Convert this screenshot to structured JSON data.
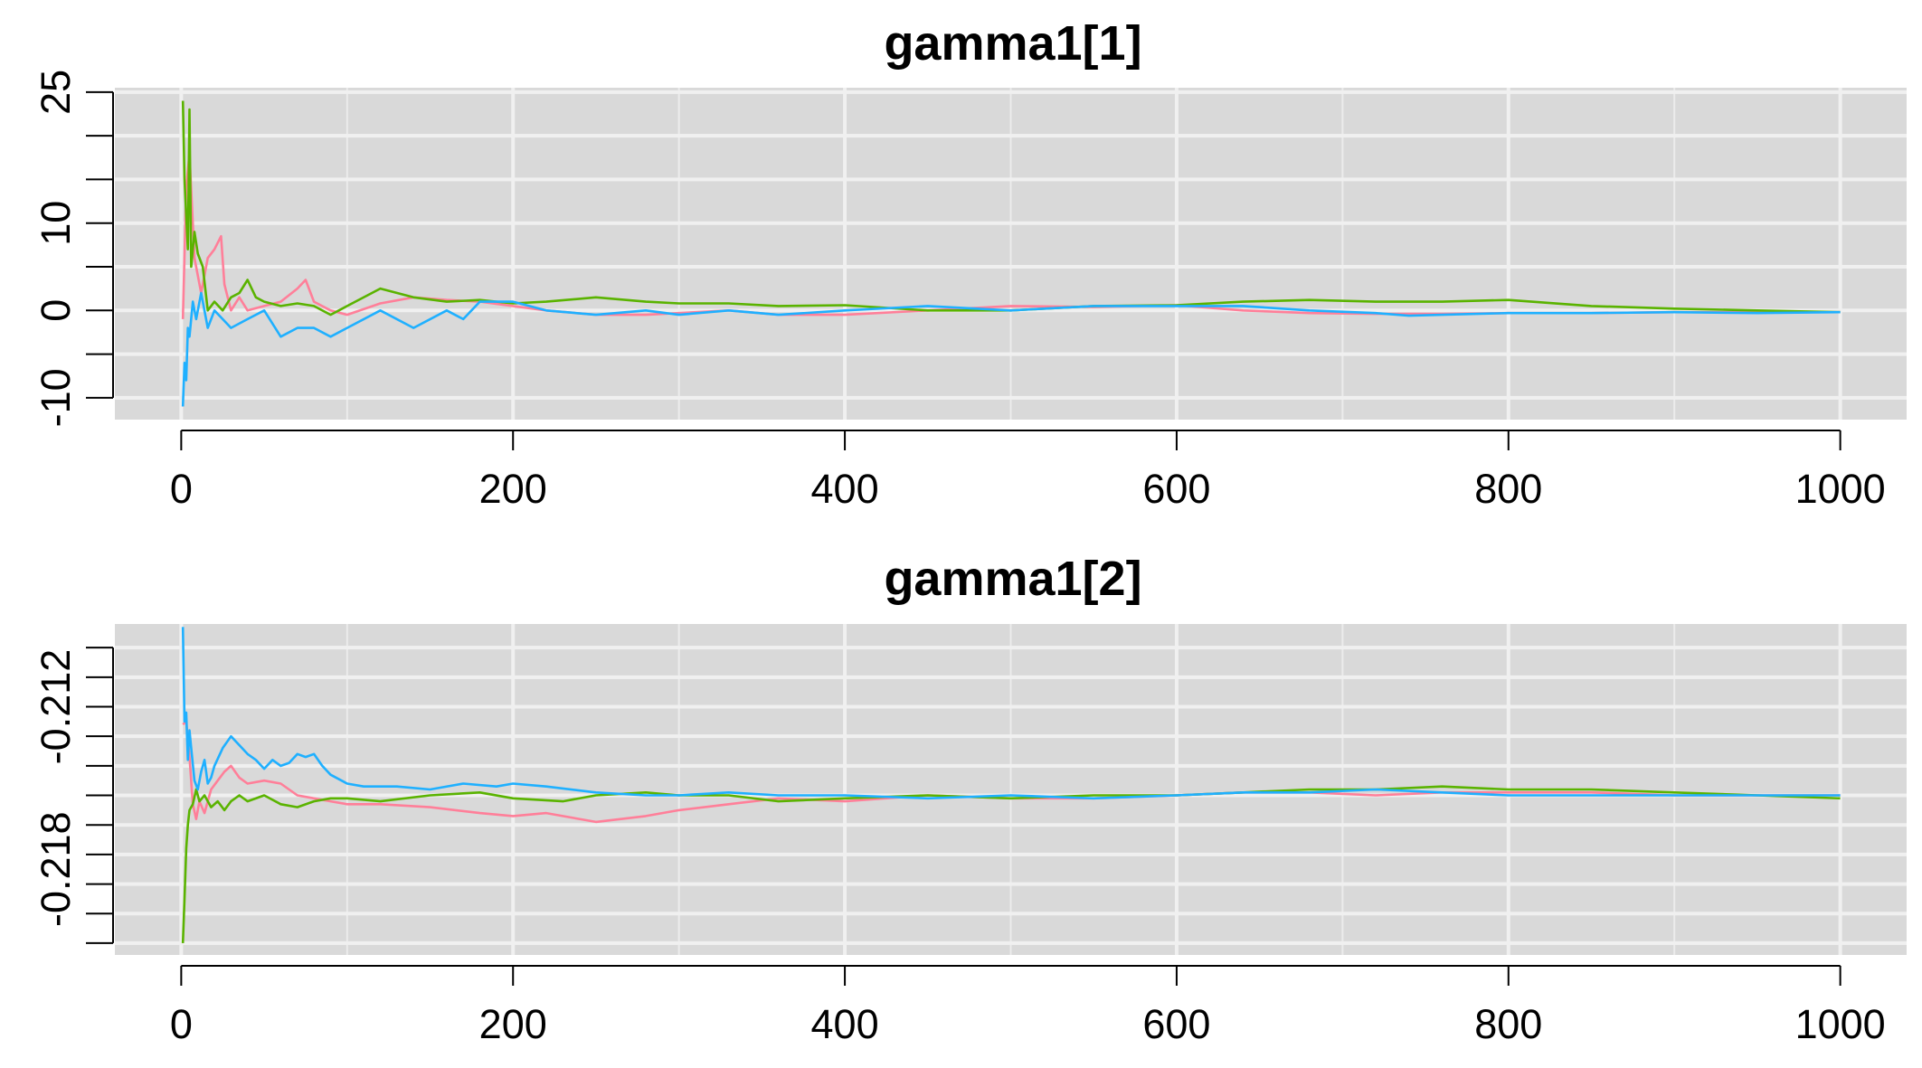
{
  "chart_data": [
    {
      "type": "line",
      "title": "gamma1[1]",
      "xlim": [
        -40,
        1040
      ],
      "ylim": [
        -12.5,
        25.5
      ],
      "x_ticks": [
        0,
        200,
        400,
        600,
        800,
        1000
      ],
      "x_tick_labels": [
        "0",
        "200",
        "400",
        "600",
        "800",
        "1000"
      ],
      "y_ticks": [
        -10,
        -5,
        0,
        5,
        10,
        15,
        20,
        25
      ],
      "y_tick_labels": [
        "-10",
        "",
        "0",
        "",
        "10",
        "",
        "",
        "25"
      ],
      "grid": true,
      "series_colors": [
        "#ff7f99",
        "#5ab300",
        "#1fb0ff"
      ],
      "series": [
        {
          "x": [
            1,
            3,
            5,
            8,
            12,
            16,
            20,
            24,
            26,
            30,
            35,
            40,
            50,
            60,
            70,
            75,
            80,
            90,
            100,
            120,
            140,
            160,
            180,
            200,
            220,
            250,
            280,
            300,
            330,
            360,
            400,
            450,
            500,
            550,
            600,
            640,
            680,
            720,
            760,
            800,
            850,
            900,
            950,
            1000
          ],
          "values": [
            -1,
            14,
            18,
            6,
            2,
            6,
            7,
            8.5,
            3,
            0,
            1.5,
            0,
            0.5,
            1,
            2.5,
            3.5,
            1,
            0,
            -0.5,
            0.8,
            1.5,
            1.2,
            1,
            0.5,
            0,
            -0.5,
            -0.5,
            -0.3,
            0,
            -0.5,
            -0.5,
            0,
            0.5,
            0.4,
            0.6,
            0,
            -0.3,
            -0.4,
            -0.4,
            -0.3,
            -0.3,
            -0.2,
            -0.2,
            -0.2
          ]
        },
        {
          "x": [
            1,
            2,
            4,
            5,
            6,
            8,
            10,
            13,
            16,
            20,
            25,
            30,
            35,
            40,
            45,
            50,
            60,
            70,
            80,
            90,
            100,
            120,
            140,
            160,
            180,
            200,
            220,
            250,
            280,
            300,
            330,
            360,
            400,
            450,
            500,
            550,
            600,
            640,
            680,
            720,
            760,
            800,
            850,
            900,
            950,
            1000
          ],
          "values": [
            24,
            15,
            7,
            23,
            5,
            9,
            6.5,
            5,
            0,
            1,
            0,
            1.5,
            2,
            3.5,
            1.5,
            1,
            0.5,
            0.8,
            0.5,
            -0.5,
            0.5,
            2.5,
            1.5,
            1,
            1.2,
            0.8,
            1,
            1.5,
            1,
            0.8,
            0.8,
            0.5,
            0.6,
            0,
            0,
            0.5,
            0.6,
            1,
            1.2,
            1,
            1,
            1.2,
            0.5,
            0.2,
            0,
            -0.2
          ]
        },
        {
          "x": [
            1,
            2,
            3,
            4,
            5,
            7,
            9,
            12,
            16,
            20,
            25,
            30,
            40,
            50,
            60,
            70,
            80,
            90,
            100,
            120,
            140,
            160,
            170,
            180,
            200,
            220,
            250,
            280,
            300,
            330,
            360,
            400,
            450,
            500,
            550,
            600,
            640,
            680,
            720,
            740,
            760,
            800,
            850,
            900,
            950,
            1000
          ],
          "values": [
            -11,
            -6,
            -8,
            -2,
            -3,
            1,
            -1,
            2,
            -2,
            0,
            -1,
            -2,
            -1,
            0,
            -3,
            -2,
            -2,
            -3,
            -2,
            0,
            -2,
            0,
            -1,
            1,
            1,
            0,
            -0.5,
            0,
            -0.5,
            0,
            -0.5,
            0,
            0.5,
            0,
            0.5,
            0.5,
            0.5,
            0,
            -0.3,
            -0.6,
            -0.5,
            -0.3,
            -0.3,
            -0.2,
            -0.3,
            -0.2
          ]
        }
      ]
    },
    {
      "type": "line",
      "title": "gamma1[2]",
      "xlim": [
        -40,
        1040
      ],
      "ylim": [
        -0.2194,
        -0.2082
      ],
      "x_ticks": [
        0,
        200,
        400,
        600,
        800,
        1000
      ],
      "x_tick_labels": [
        "0",
        "200",
        "400",
        "600",
        "800",
        "1000"
      ],
      "y_ticks": [
        -0.209,
        -0.21,
        -0.211,
        -0.212,
        -0.213,
        -0.214,
        -0.215,
        -0.216,
        -0.217,
        -0.218,
        -0.219
      ],
      "y_tick_labels": [
        "",
        "",
        "",
        "",
        "",
        "",
        "",
        "",
        "",
        "",
        ""
      ],
      "y_tick_text": [
        {
          "label": "-0.212",
          "from": -0.21,
          "to": -0.212
        },
        {
          "label": "-0.218",
          "from": -0.215,
          "to": -0.218
        }
      ],
      "grid": true,
      "series_colors": [
        "#ff7f99",
        "#5ab300",
        "#1fb0ff"
      ],
      "series": [
        {
          "x": [
            1,
            3,
            5,
            7,
            9,
            11,
            14,
            18,
            22,
            26,
            30,
            35,
            40,
            50,
            60,
            70,
            80,
            90,
            100,
            120,
            150,
            180,
            200,
            220,
            250,
            280,
            300,
            330,
            360,
            400,
            450,
            500,
            550,
            600,
            640,
            680,
            720,
            760,
            800,
            850,
            900,
            950,
            1000
          ],
          "values": [
            -0.2116,
            -0.2115,
            -0.2127,
            -0.2143,
            -0.2148,
            -0.2142,
            -0.2146,
            -0.2138,
            -0.2135,
            -0.2132,
            -0.213,
            -0.2134,
            -0.2136,
            -0.2135,
            -0.2136,
            -0.214,
            -0.2141,
            -0.2142,
            -0.2143,
            -0.2143,
            -0.2144,
            -0.2146,
            -0.2147,
            -0.2146,
            -0.2149,
            -0.2147,
            -0.2145,
            -0.2143,
            -0.2141,
            -0.2142,
            -0.214,
            -0.2141,
            -0.2141,
            -0.214,
            -0.2139,
            -0.2139,
            -0.214,
            -0.2139,
            -0.2139,
            -0.2139,
            -0.214,
            -0.214,
            -0.214
          ]
        },
        {
          "x": [
            1,
            2,
            3,
            4,
            5,
            7,
            9,
            11,
            14,
            18,
            22,
            26,
            30,
            35,
            40,
            50,
            60,
            70,
            80,
            90,
            100,
            120,
            150,
            180,
            200,
            230,
            250,
            280,
            300,
            330,
            360,
            400,
            450,
            500,
            550,
            600,
            640,
            680,
            720,
            760,
            800,
            850,
            900,
            950,
            1000
          ],
          "values": [
            -0.219,
            -0.2175,
            -0.2158,
            -0.215,
            -0.2145,
            -0.2143,
            -0.2138,
            -0.2142,
            -0.214,
            -0.2144,
            -0.2142,
            -0.2145,
            -0.2142,
            -0.214,
            -0.2142,
            -0.214,
            -0.2143,
            -0.2144,
            -0.2142,
            -0.2141,
            -0.2141,
            -0.2142,
            -0.214,
            -0.2139,
            -0.2141,
            -0.2142,
            -0.214,
            -0.2139,
            -0.214,
            -0.214,
            -0.2142,
            -0.2141,
            -0.214,
            -0.2141,
            -0.214,
            -0.214,
            -0.2139,
            -0.2138,
            -0.2138,
            -0.2137,
            -0.2138,
            -0.2138,
            -0.2139,
            -0.214,
            -0.2141
          ]
        },
        {
          "x": [
            1,
            2,
            3,
            4,
            5,
            6,
            8,
            10,
            12,
            14,
            16,
            18,
            20,
            25,
            30,
            35,
            40,
            45,
            50,
            55,
            60,
            65,
            70,
            75,
            80,
            85,
            90,
            100,
            110,
            130,
            150,
            170,
            190,
            200,
            220,
            250,
            280,
            300,
            330,
            360,
            400,
            450,
            500,
            550,
            600,
            640,
            680,
            720,
            760,
            800,
            850,
            900,
            950,
            1000
          ],
          "values": [
            -0.2083,
            -0.2115,
            -0.2112,
            -0.2128,
            -0.2118,
            -0.2124,
            -0.2135,
            -0.2138,
            -0.2132,
            -0.2128,
            -0.2136,
            -0.2134,
            -0.213,
            -0.2124,
            -0.212,
            -0.2123,
            -0.2126,
            -0.2128,
            -0.2131,
            -0.2128,
            -0.213,
            -0.2129,
            -0.2126,
            -0.2127,
            -0.2126,
            -0.213,
            -0.2133,
            -0.2136,
            -0.2137,
            -0.2137,
            -0.2138,
            -0.2136,
            -0.2137,
            -0.2136,
            -0.2137,
            -0.2139,
            -0.214,
            -0.214,
            -0.2139,
            -0.214,
            -0.214,
            -0.2141,
            -0.214,
            -0.2141,
            -0.214,
            -0.2139,
            -0.2139,
            -0.2138,
            -0.2139,
            -0.214,
            -0.214,
            -0.214,
            -0.214,
            -0.214
          ]
        }
      ]
    }
  ]
}
